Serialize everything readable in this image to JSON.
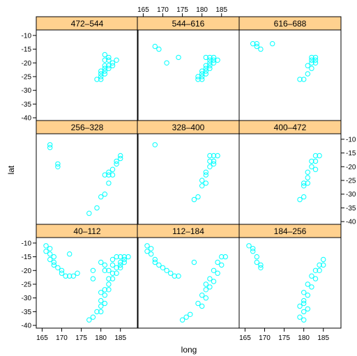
{
  "chart_data": {
    "type": "scatter",
    "xlabel": "long",
    "ylabel": "lat",
    "xlim": [
      163.5,
      189.5
    ],
    "ylim": [
      -41,
      -8
    ],
    "x_ticks": [
      165,
      170,
      175,
      180,
      185
    ],
    "y_ticks": [
      -10,
      -15,
      -20,
      -25,
      -30,
      -35,
      -40
    ],
    "colors": {
      "strip": "#ffd18f",
      "points": "#00ffff"
    },
    "panels": [
      {
        "label": "472–544",
        "points": [
          [
            181,
            -17
          ],
          [
            182,
            -18
          ],
          [
            182,
            -19
          ],
          [
            183,
            -20
          ],
          [
            181,
            -21
          ],
          [
            182,
            -21
          ],
          [
            181,
            -22
          ],
          [
            182,
            -22
          ],
          [
            180,
            -23
          ],
          [
            181,
            -23
          ],
          [
            180,
            -24
          ],
          [
            181,
            -24
          ],
          [
            180,
            -25
          ],
          [
            179,
            -26
          ],
          [
            180,
            -26
          ],
          [
            184,
            -19
          ],
          [
            183,
            -21
          ],
          [
            181,
            -19
          ]
        ]
      },
      {
        "label": "544–616",
        "points": [
          [
            168,
            -14
          ],
          [
            169,
            -15
          ],
          [
            171,
            -20
          ],
          [
            174,
            -18
          ],
          [
            181,
            -18
          ],
          [
            182,
            -18
          ],
          [
            183,
            -18
          ],
          [
            182,
            -19
          ],
          [
            183,
            -19
          ],
          [
            184,
            -19
          ],
          [
            182,
            -20
          ],
          [
            183,
            -20
          ],
          [
            181,
            -21
          ],
          [
            182,
            -21
          ],
          [
            181,
            -22
          ],
          [
            182,
            -22
          ],
          [
            180,
            -23
          ],
          [
            181,
            -23
          ],
          [
            180,
            -24
          ],
          [
            181,
            -24
          ],
          [
            179,
            -25
          ],
          [
            180,
            -25
          ],
          [
            179,
            -26
          ],
          [
            180,
            -26
          ]
        ]
      },
      {
        "label": "616–688",
        "points": [
          [
            167,
            -13
          ],
          [
            168,
            -13
          ],
          [
            168,
            -14
          ],
          [
            169,
            -15
          ],
          [
            172,
            -13
          ],
          [
            182,
            -18
          ],
          [
            183,
            -18
          ],
          [
            182,
            -19
          ],
          [
            183,
            -19
          ],
          [
            182,
            -20
          ],
          [
            183,
            -20
          ],
          [
            181,
            -21
          ],
          [
            182,
            -22
          ],
          [
            181,
            -24
          ],
          [
            179,
            -26
          ],
          [
            180,
            -26
          ]
        ]
      },
      {
        "label": "256–328",
        "points": [
          [
            167,
            -12
          ],
          [
            167,
            -13
          ],
          [
            169,
            -19
          ],
          [
            169,
            -20
          ],
          [
            185,
            -16
          ],
          [
            185,
            -17
          ],
          [
            184,
            -18
          ],
          [
            184,
            -19
          ],
          [
            183,
            -21
          ],
          [
            182,
            -22
          ],
          [
            183,
            -23
          ],
          [
            181,
            -23
          ],
          [
            182,
            -23
          ],
          [
            182,
            -26
          ],
          [
            181,
            -30
          ],
          [
            180,
            -31
          ],
          [
            179,
            -35
          ],
          [
            177,
            -37
          ]
        ]
      },
      {
        "label": "328–400",
        "points": [
          [
            168,
            -12
          ],
          [
            182,
            -16
          ],
          [
            183,
            -16
          ],
          [
            184,
            -16
          ],
          [
            182,
            -18
          ],
          [
            183,
            -18
          ],
          [
            182,
            -20
          ],
          [
            183,
            -19
          ],
          [
            181,
            -22
          ],
          [
            181,
            -23
          ],
          [
            180,
            -25
          ],
          [
            181,
            -26
          ],
          [
            180,
            -27
          ],
          [
            179,
            -31
          ],
          [
            178,
            -32
          ]
        ]
      },
      {
        "label": "400–472",
        "points": [
          [
            183,
            -16
          ],
          [
            184,
            -16
          ],
          [
            182,
            -18
          ],
          [
            183,
            -18
          ],
          [
            182,
            -20
          ],
          [
            183,
            -21
          ],
          [
            181,
            -22
          ],
          [
            181,
            -24
          ],
          [
            180,
            -26
          ],
          [
            181,
            -26
          ],
          [
            180,
            -27
          ],
          [
            180,
            -31
          ],
          [
            179,
            -32
          ]
        ]
      },
      {
        "label": "40–112",
        "points": [
          [
            166,
            -11
          ],
          [
            167,
            -12
          ],
          [
            166,
            -13
          ],
          [
            167,
            -14
          ],
          [
            168,
            -15
          ],
          [
            167,
            -16
          ],
          [
            168,
            -17
          ],
          [
            168,
            -18
          ],
          [
            169,
            -19
          ],
          [
            170,
            -20
          ],
          [
            170,
            -21
          ],
          [
            171,
            -22
          ],
          [
            172,
            -22
          ],
          [
            173,
            -22
          ],
          [
            174,
            -21
          ],
          [
            172,
            -14
          ],
          [
            178,
            -20
          ],
          [
            180,
            -17
          ],
          [
            181,
            -18
          ],
          [
            183,
            -16
          ],
          [
            184,
            -15
          ],
          [
            185,
            -15
          ],
          [
            186,
            -15
          ],
          [
            187,
            -15
          ],
          [
            185,
            -17
          ],
          [
            186,
            -17
          ],
          [
            184,
            -19
          ],
          [
            185,
            -19
          ],
          [
            183,
            -21
          ],
          [
            184,
            -21
          ],
          [
            182,
            -23
          ],
          [
            183,
            -23
          ],
          [
            182,
            -25
          ],
          [
            181,
            -27
          ],
          [
            182,
            -27
          ],
          [
            181,
            -29
          ],
          [
            180,
            -31
          ],
          [
            181,
            -32
          ],
          [
            180,
            -33
          ],
          [
            179,
            -35
          ],
          [
            180,
            -35
          ],
          [
            177,
            -38
          ],
          [
            178,
            -37
          ],
          [
            181,
            -20
          ],
          [
            178,
            -23
          ],
          [
            185,
            -18
          ],
          [
            186,
            -16
          ],
          [
            183,
            -18
          ],
          [
            182,
            -20
          ],
          [
            180,
            -28
          ]
        ]
      },
      {
        "label": "112–184",
        "points": [
          [
            166,
            -11
          ],
          [
            167,
            -12
          ],
          [
            166,
            -13
          ],
          [
            167,
            -14
          ],
          [
            168,
            -16
          ],
          [
            168,
            -17
          ],
          [
            169,
            -18
          ],
          [
            170,
            -19
          ],
          [
            171,
            -20
          ],
          [
            172,
            -21
          ],
          [
            173,
            -22
          ],
          [
            174,
            -22
          ],
          [
            178,
            -17
          ],
          [
            185,
            -15
          ],
          [
            186,
            -15
          ],
          [
            184,
            -17
          ],
          [
            185,
            -18
          ],
          [
            183,
            -20
          ],
          [
            184,
            -21
          ],
          [
            182,
            -23
          ],
          [
            183,
            -24
          ],
          [
            181,
            -25
          ],
          [
            182,
            -26
          ],
          [
            181,
            -27
          ],
          [
            180,
            -29
          ],
          [
            181,
            -30
          ],
          [
            179,
            -32
          ],
          [
            180,
            -33
          ],
          [
            177,
            -36
          ],
          [
            175,
            -38
          ],
          [
            176,
            -37
          ]
        ]
      },
      {
        "label": "184–256",
        "points": [
          [
            166,
            -11
          ],
          [
            167,
            -12
          ],
          [
            167,
            -13
          ],
          [
            168,
            -15
          ],
          [
            168,
            -17
          ],
          [
            169,
            -18
          ],
          [
            169,
            -19
          ],
          [
            185,
            -16
          ],
          [
            184,
            -18
          ],
          [
            185,
            -18
          ],
          [
            183,
            -20
          ],
          [
            184,
            -20
          ],
          [
            182,
            -22
          ],
          [
            183,
            -23
          ],
          [
            181,
            -25
          ],
          [
            182,
            -26
          ],
          [
            180,
            -28
          ],
          [
            181,
            -29
          ],
          [
            180,
            -31
          ],
          [
            180,
            -32
          ],
          [
            179,
            -33
          ],
          [
            181,
            -34
          ],
          [
            180,
            -35
          ],
          [
            179,
            -37
          ],
          [
            180,
            -38
          ]
        ]
      }
    ]
  }
}
